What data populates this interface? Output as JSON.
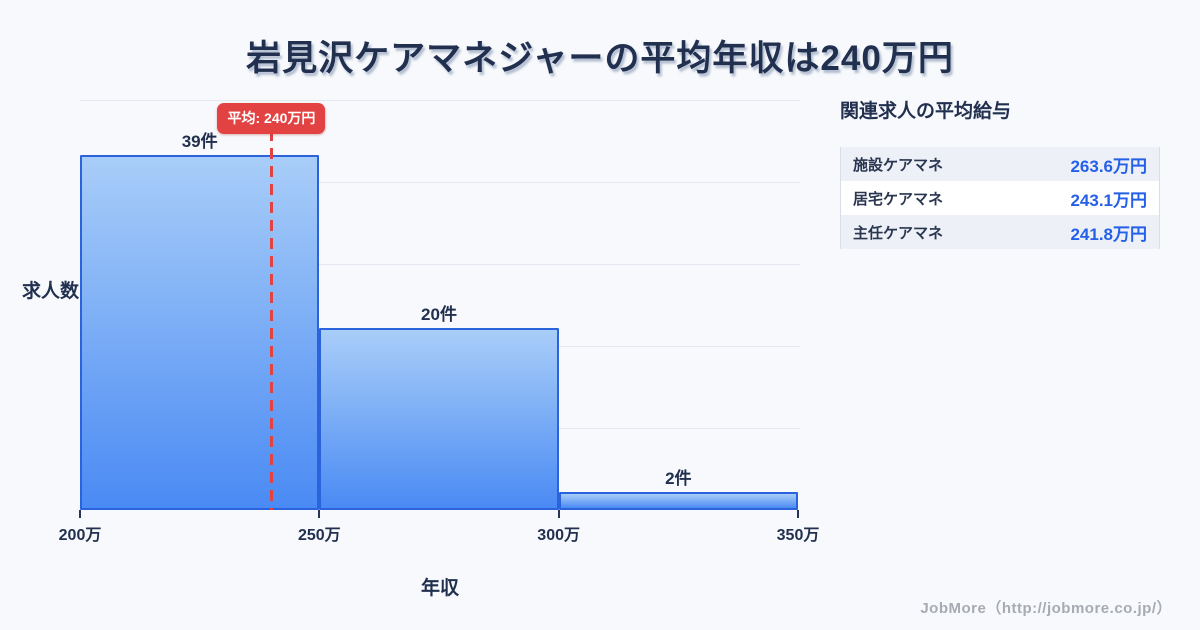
{
  "title": "岩見沢ケアマネジャーの平均年収は240万円",
  "chart_data": {
    "type": "bar",
    "title": "岩見沢ケアマネジャーの平均年収は240万円",
    "xlabel": "年収",
    "ylabel": "求人数",
    "x_ticks": [
      "200万",
      "250万",
      "300万",
      "350万"
    ],
    "x_range": [
      200,
      350
    ],
    "ylim": [
      0,
      45
    ],
    "grid": true,
    "legend": false,
    "bins": [
      "200万-250万",
      "250万-300万",
      "300万-350万"
    ],
    "values": [
      39,
      20,
      2
    ],
    "bar_labels": [
      "39件",
      "20件",
      "2件"
    ],
    "average": {
      "value": 240,
      "label": "平均: 240万円"
    }
  },
  "side_panel": {
    "heading": "関連求人の平均給与",
    "rows": [
      {
        "label": "施設ケアマネ",
        "value": "263.6万円"
      },
      {
        "label": "居宅ケアマネ",
        "value": "243.1万円"
      },
      {
        "label": "主任ケアマネ",
        "value": "241.8万円"
      }
    ]
  },
  "footer": {
    "credit": "JobMore（http://jobmore.co.jp/）"
  },
  "colors": {
    "background": "#f7f9fc",
    "title_navy": "#22304f",
    "bar_border": "#2b63dd",
    "bar_gradient_top": "#a8cdf8",
    "bar_gradient_bottom": "#4a8af4",
    "average_red": "#e34242",
    "value_blue": "#2560e8",
    "grid": "#e3e8f1",
    "credit_gray": "#a7abb2"
  }
}
